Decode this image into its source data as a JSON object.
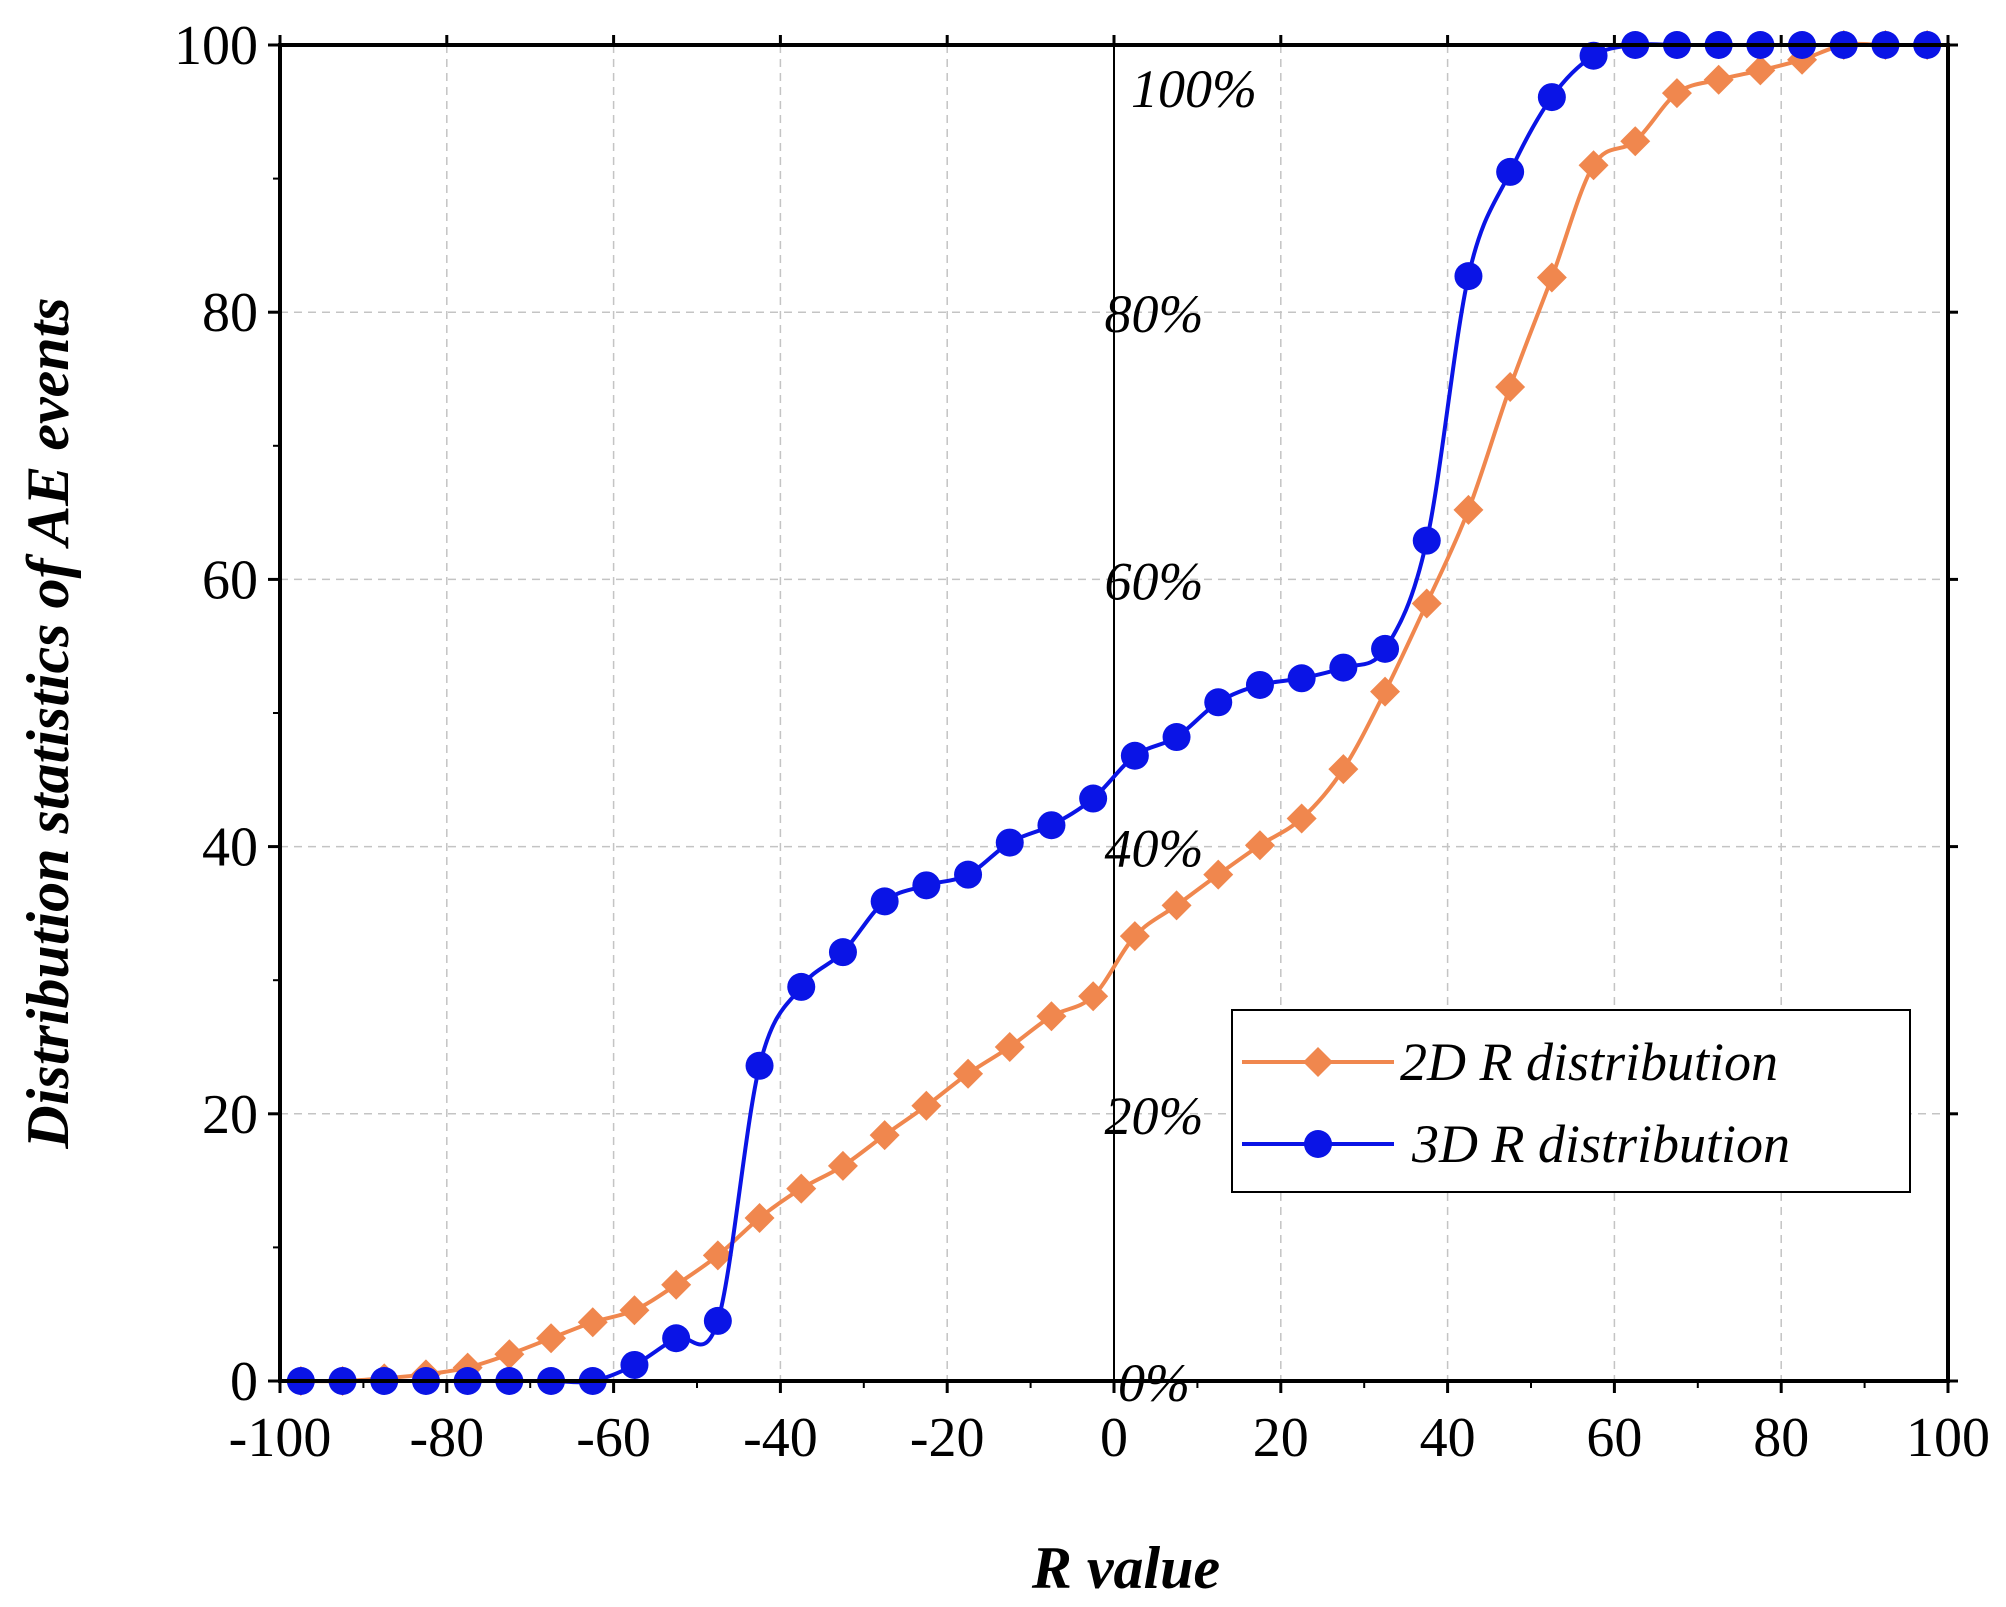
{
  "chart_data": {
    "type": "line",
    "title": "",
    "xlabel": "R value",
    "ylabel": "Distribution statistics of AE events",
    "xlim": [
      -100,
      100
    ],
    "ylim": [
      0,
      100
    ],
    "x_ticks": [
      "-100",
      "-80",
      "-60",
      "-40",
      "-20",
      "0",
      "20",
      "40",
      "60",
      "80",
      "100"
    ],
    "y_ticks": [
      "0",
      "20",
      "40",
      "60",
      "80",
      "100"
    ],
    "grid": true,
    "percent_annotations": [
      {
        "value": 0,
        "text": "0%"
      },
      {
        "value": 20,
        "text": "20%"
      },
      {
        "value": 40,
        "text": "40%"
      },
      {
        "value": 60,
        "text": "60%"
      },
      {
        "value": 80,
        "text": "80%"
      },
      {
        "value": 100,
        "text": "100%"
      }
    ],
    "legend_position": "bottom-right",
    "x": [
      -97.5,
      -92.5,
      -87.5,
      -82.5,
      -77.5,
      -72.5,
      -67.5,
      -62.5,
      -57.5,
      -52.5,
      -47.5,
      -42.5,
      -37.5,
      -32.5,
      -27.5,
      -22.5,
      -17.5,
      -12.5,
      -7.5,
      -2.5,
      2.5,
      7.5,
      12.5,
      17.5,
      22.5,
      27.5,
      32.5,
      37.5,
      42.5,
      47.5,
      52.5,
      57.5,
      62.5,
      67.5,
      72.5,
      77.5,
      82.5,
      87.5,
      92.5,
      97.5
    ],
    "series": [
      {
        "name": "2D R distribution",
        "color": "#f0874e",
        "marker": "diamond",
        "values": [
          0.0,
          0.0,
          0.2,
          0.5,
          1.0,
          2.0,
          3.2,
          4.4,
          5.3,
          7.2,
          9.4,
          12.2,
          14.4,
          16.1,
          18.4,
          20.6,
          23.0,
          25.0,
          27.3,
          28.8,
          33.3,
          35.6,
          37.9,
          40.1,
          42.1,
          45.8,
          51.6,
          58.2,
          65.2,
          74.4,
          82.6,
          91.0,
          92.8,
          96.4,
          97.4,
          98.1,
          98.9,
          100.0,
          100.0,
          100.0
        ]
      },
      {
        "name": "3D R distribution",
        "color": "#0a14e6",
        "marker": "circle",
        "values": [
          0.0,
          0.0,
          0.0,
          0.0,
          0.0,
          0.0,
          0.0,
          0.0,
          1.2,
          3.2,
          4.5,
          23.6,
          29.5,
          32.1,
          35.9,
          37.1,
          37.9,
          40.3,
          41.6,
          43.6,
          46.8,
          48.2,
          50.8,
          52.1,
          52.6,
          53.4,
          54.8,
          62.9,
          82.7,
          90.5,
          96.1,
          99.2,
          100.0,
          100.0,
          100.0,
          100.0,
          100.0,
          100.0,
          100.0,
          100.0
        ]
      }
    ]
  }
}
